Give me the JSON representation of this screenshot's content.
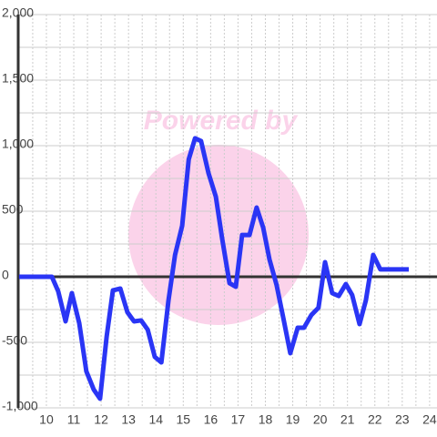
{
  "chart_data": {
    "type": "line",
    "watermark": "Powered by",
    "x": [
      9,
      10.2,
      10.43,
      10.7,
      10.93,
      11.2,
      11.46,
      11.73,
      11.96,
      12.2,
      12.43,
      12.7,
      12.96,
      13.2,
      13.46,
      13.7,
      13.96,
      14.2,
      14.46,
      14.7,
      14.96,
      15.2,
      15.43,
      15.65,
      15.92,
      16.19,
      16.42,
      16.69,
      16.92,
      17.15,
      17.42,
      17.68,
      17.92,
      18.15,
      18.41,
      18.68,
      18.91,
      19.18,
      19.41,
      19.68,
      19.94,
      20.18,
      20.44,
      20.68,
      20.94,
      21.17,
      21.44,
      21.67,
      21.94,
      22.2,
      23.24
    ],
    "series": [
      {
        "color": "#2a35f5",
        "values": [
          0,
          0,
          -110,
          -340,
          -125,
          -354,
          -722,
          -861,
          -930,
          -458,
          -104,
          -90,
          -271,
          -340,
          -333,
          -403,
          -611,
          -653,
          -180,
          167,
          389,
          896,
          1056,
          1035,
          792,
          611,
          292,
          -49,
          -76,
          319,
          319,
          528,
          375,
          132,
          -63,
          -340,
          -583,
          -389,
          -389,
          -292,
          -236,
          111,
          -125,
          -146,
          -56,
          -139,
          -361,
          -181,
          167,
          56,
          56
        ]
      }
    ],
    "xlim": [
      8.97,
      24.27
    ],
    "ylim": [
      -1000,
      2000
    ],
    "xticks": [
      10,
      11,
      12,
      13,
      14,
      15,
      16,
      17,
      18,
      19,
      20,
      21,
      22,
      23,
      24
    ],
    "yticks": [
      {
        "value": -1000,
        "label": "-1,000"
      },
      -500,
      0,
      500,
      {
        "value": 1000,
        "label": "1,000"
      },
      {
        "value": 1500,
        "label": "1,500"
      },
      {
        "value": 2000,
        "label": "2,000"
      }
    ],
    "xminor": [
      9.5,
      10.5,
      11.5,
      12.5,
      13.5,
      14.5,
      15.5,
      16.5,
      17.5,
      18.5,
      19.5,
      20.5,
      21.5,
      22.5,
      23.5
    ],
    "yminor": [
      -750,
      -250,
      250,
      750,
      1250,
      1750
    ],
    "grid": true
  }
}
